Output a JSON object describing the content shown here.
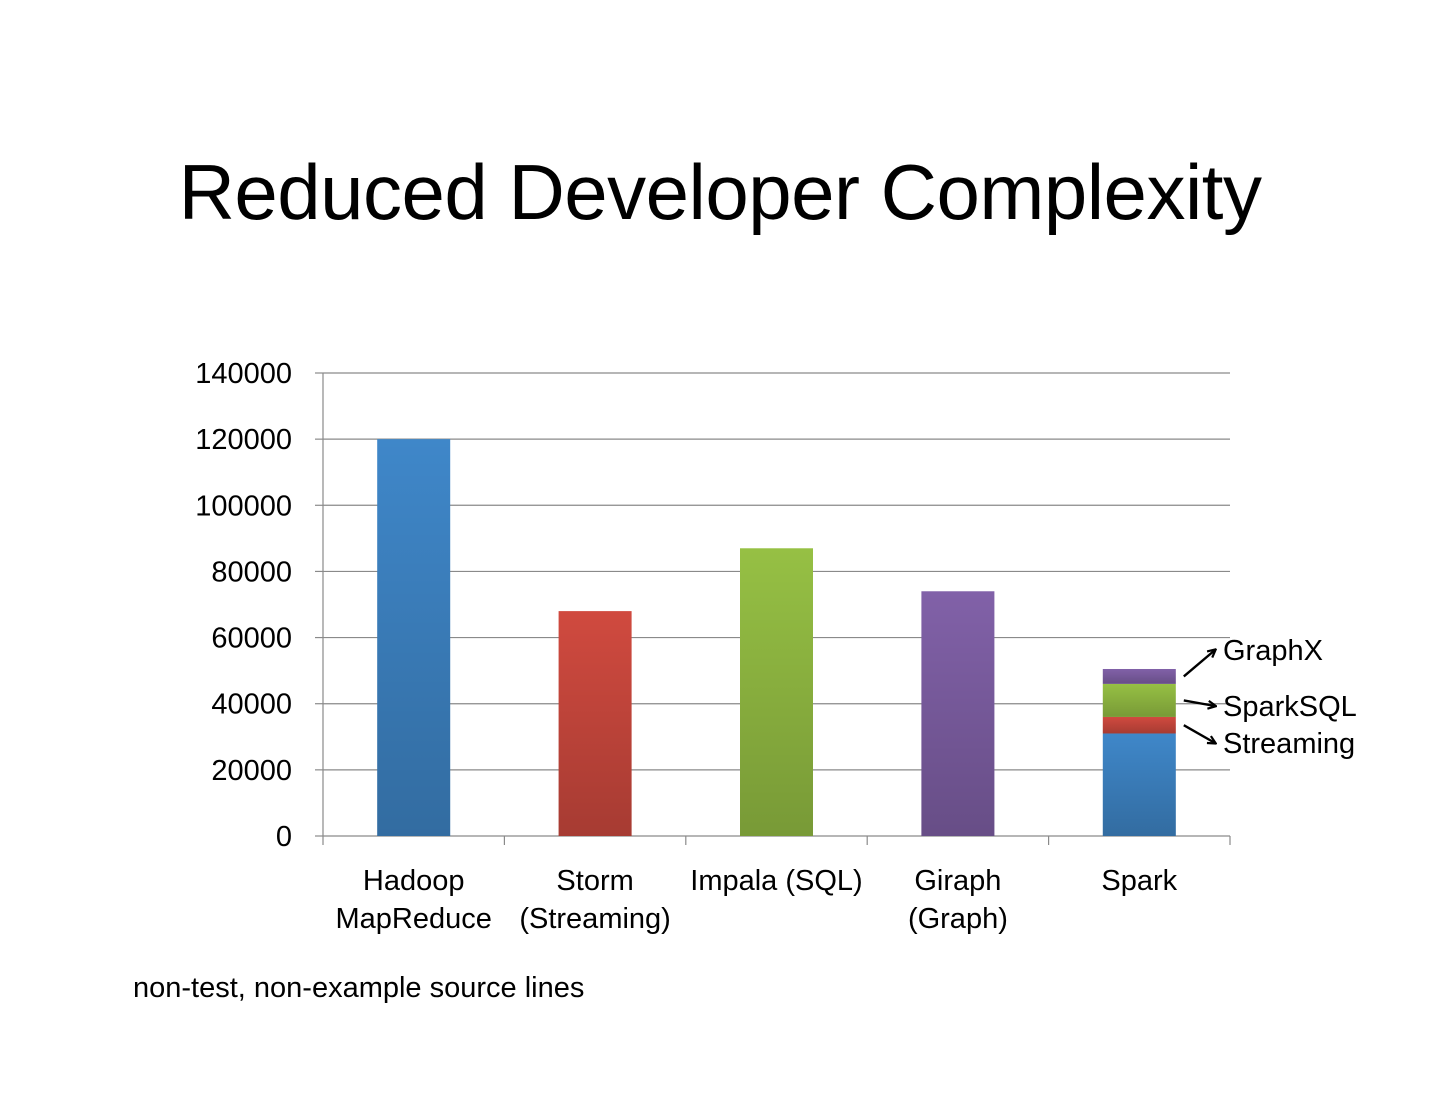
{
  "slide": {
    "title": "Reduced Developer Complexity",
    "footnote": "non-test, non-example source lines"
  },
  "chart_data": {
    "type": "bar",
    "stacked": true,
    "categories": [
      [
        "Hadoop",
        "MapReduce"
      ],
      [
        "Storm",
        "(Streaming)"
      ],
      [
        "Impala (SQL)"
      ],
      [
        "Giraph",
        "(Graph)"
      ],
      [
        "Spark"
      ]
    ],
    "series": [
      {
        "color": "#3f87c9",
        "values": [
          120000,
          0,
          0,
          0,
          31000
        ]
      },
      {
        "name": "Streaming",
        "color": "#d04a3f",
        "values": [
          0,
          68000,
          0,
          0,
          5000
        ]
      },
      {
        "name": "SparkSQL",
        "color": "#96c044",
        "values": [
          0,
          0,
          87000,
          0,
          10000
        ]
      },
      {
        "name": "GraphX",
        "color": "#8161a8",
        "values": [
          0,
          0,
          0,
          74000,
          4500
        ]
      }
    ],
    "yticks": [
      "0",
      "20000",
      "40000",
      "60000",
      "80000",
      "100000",
      "120000",
      "140000"
    ],
    "ylim": [
      0,
      140000
    ],
    "grid": true,
    "legend": "right of last bar, with arrows",
    "annotations": [
      "GraphX",
      "SparkSQL",
      "Streaming"
    ]
  }
}
